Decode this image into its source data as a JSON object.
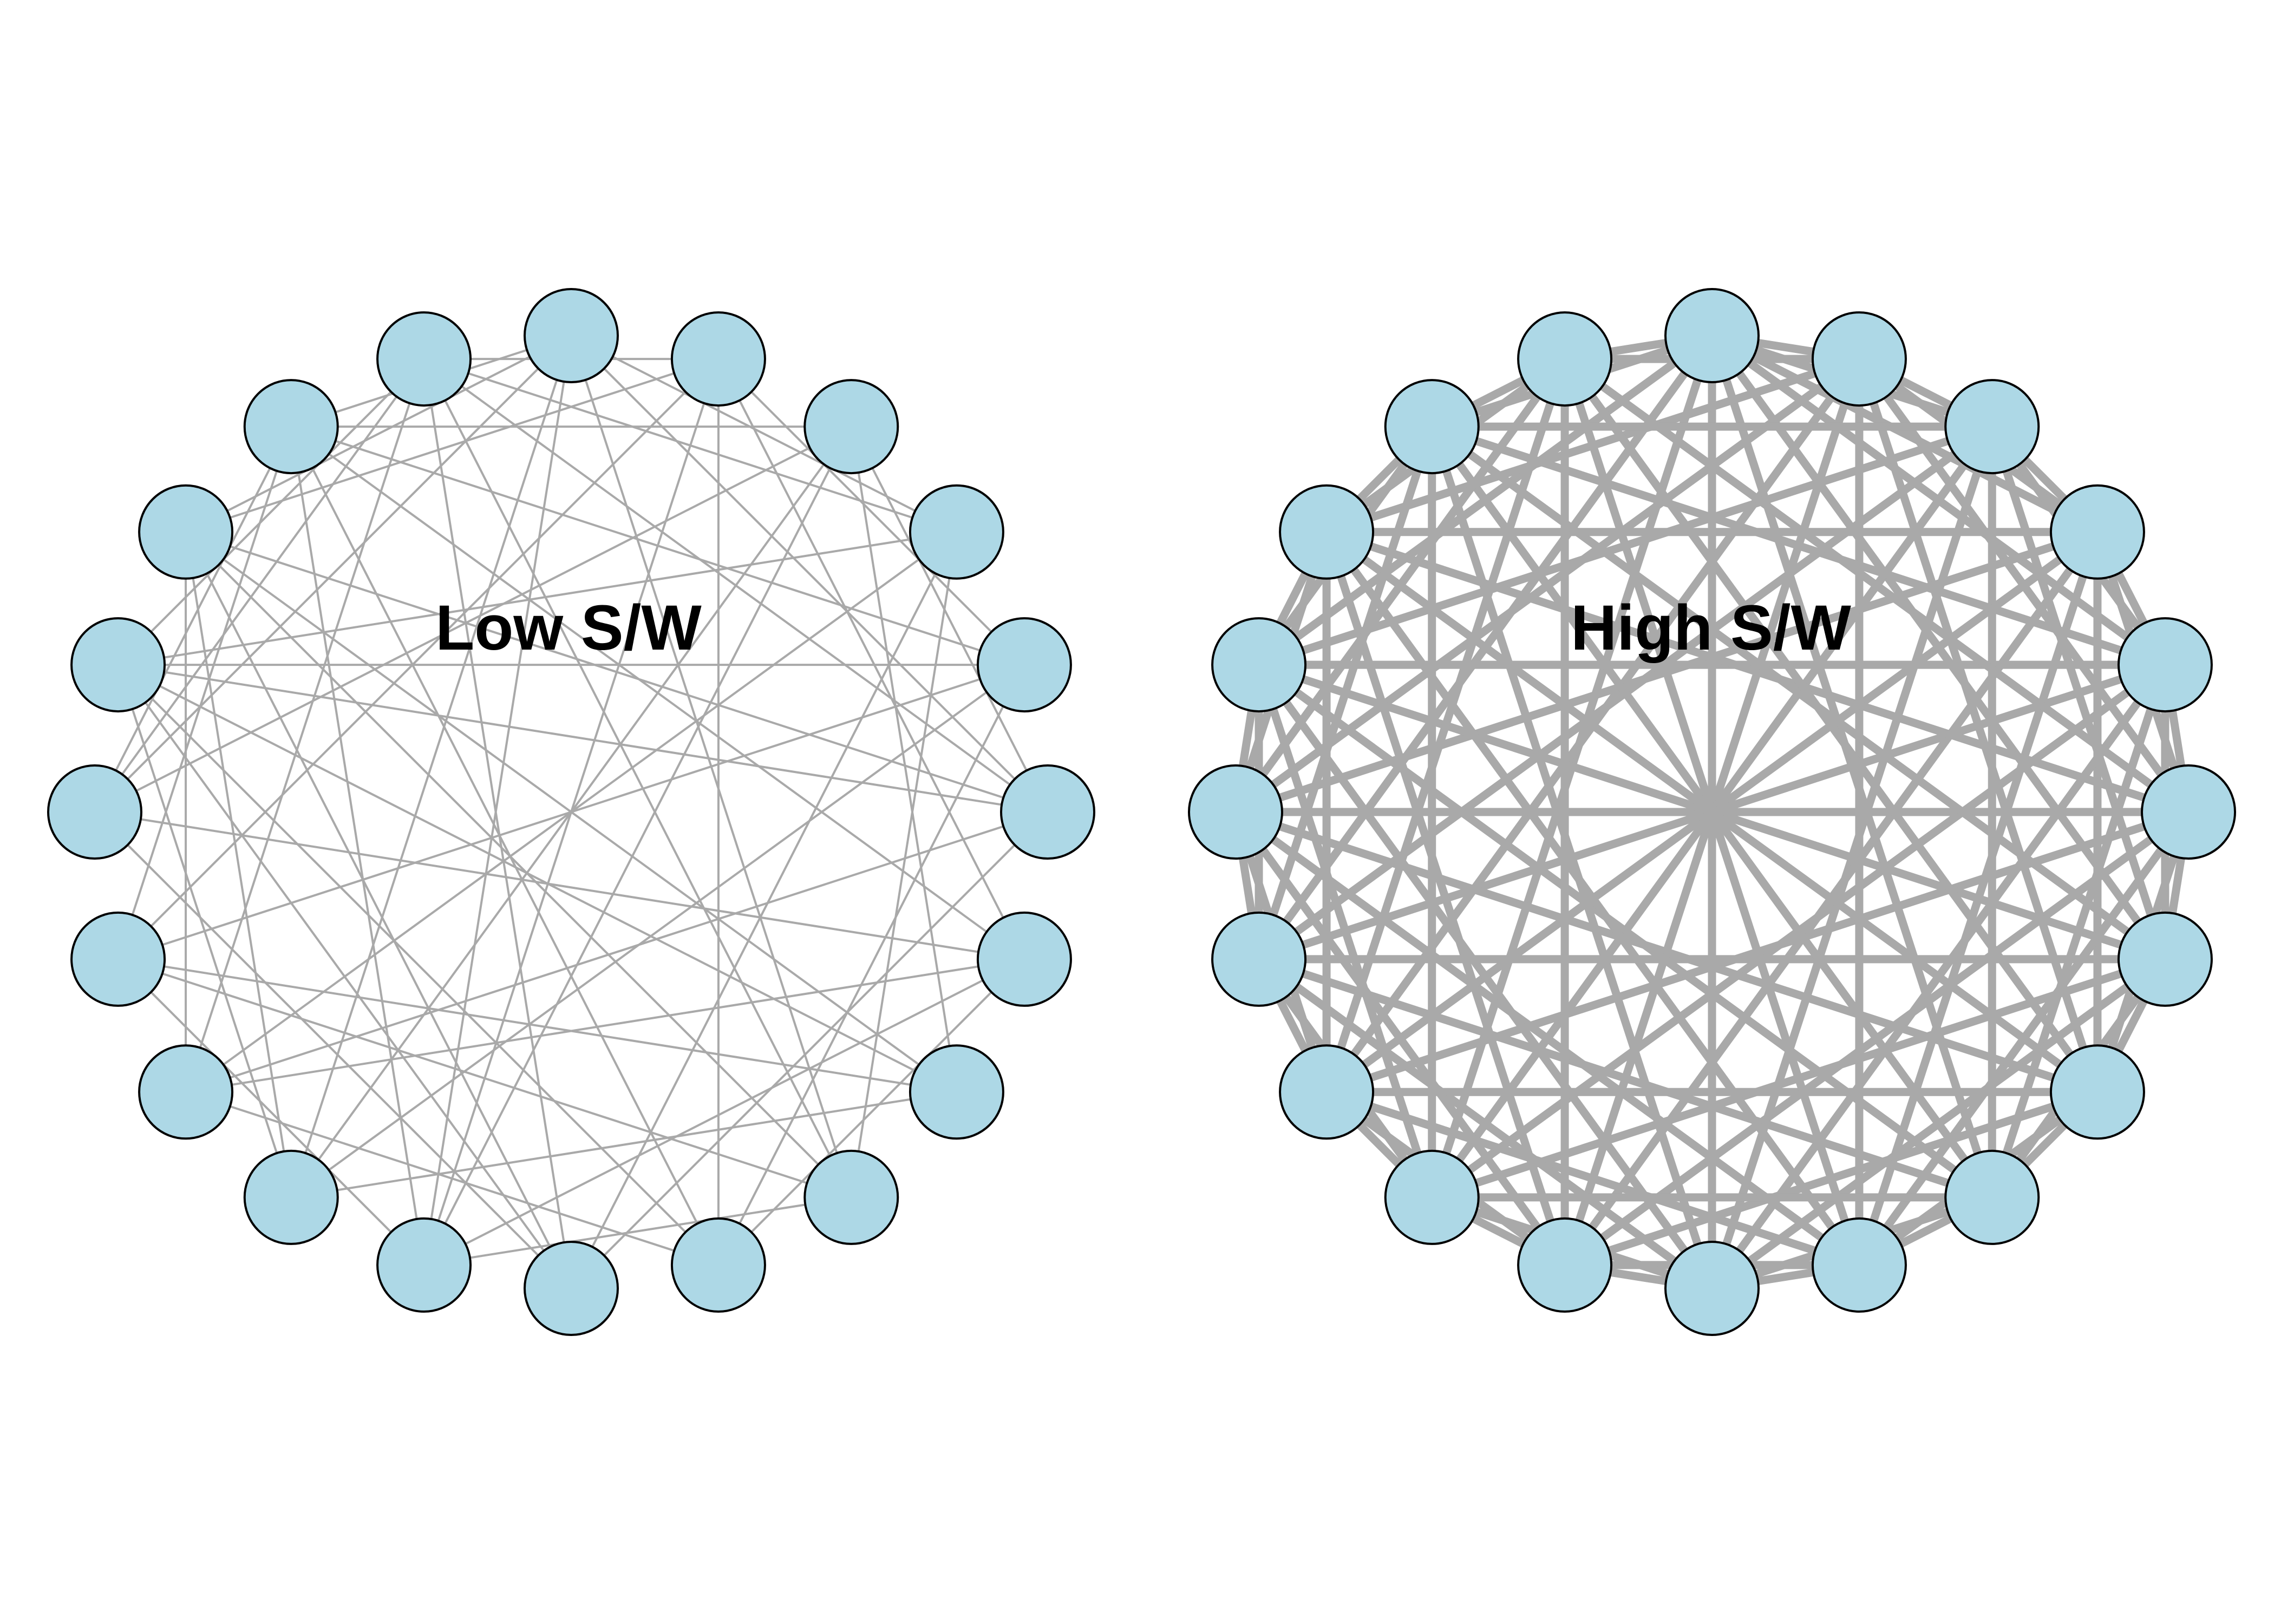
{
  "colors": {
    "node_fill": "#add8e6",
    "node_stroke": "#000000",
    "edge": "#a9a9a9",
    "background": "#ffffff"
  },
  "panels": [
    {
      "label": "Low S/W",
      "edge_weight": "low",
      "node_count": 20
    },
    {
      "label": "High S/W",
      "edge_weight": "high",
      "node_count": 20
    }
  ],
  "edges_low": [
    [
      0,
      5
    ],
    [
      0,
      8
    ],
    [
      0,
      12
    ],
    [
      0,
      15
    ],
    [
      0,
      17
    ],
    [
      0,
      3
    ],
    [
      0,
      18
    ],
    [
      0,
      11
    ],
    [
      1,
      6
    ],
    [
      1,
      9
    ],
    [
      1,
      14
    ],
    [
      1,
      17
    ],
    [
      1,
      19
    ],
    [
      1,
      4
    ],
    [
      1,
      11
    ],
    [
      2,
      7
    ],
    [
      2,
      11
    ],
    [
      2,
      15
    ],
    [
      2,
      18
    ],
    [
      2,
      5
    ],
    [
      2,
      12
    ],
    [
      3,
      8
    ],
    [
      3,
      13
    ],
    [
      3,
      16
    ],
    [
      3,
      19
    ],
    [
      3,
      10
    ],
    [
      4,
      9
    ],
    [
      4,
      12
    ],
    [
      4,
      16
    ],
    [
      4,
      18
    ],
    [
      4,
      14
    ],
    [
      5,
      10
    ],
    [
      5,
      13
    ],
    [
      5,
      16
    ],
    [
      5,
      19
    ],
    [
      5,
      17
    ],
    [
      6,
      11
    ],
    [
      6,
      15
    ],
    [
      6,
      18
    ],
    [
      6,
      13
    ],
    [
      6,
      9
    ],
    [
      7,
      12
    ],
    [
      7,
      14
    ],
    [
      7,
      16
    ],
    [
      7,
      17
    ],
    [
      8,
      14
    ],
    [
      8,
      17
    ],
    [
      8,
      11
    ],
    [
      8,
      19
    ],
    [
      9,
      13
    ],
    [
      9,
      16
    ],
    [
      9,
      18
    ],
    [
      10,
      15
    ],
    [
      10,
      17
    ],
    [
      10,
      19
    ],
    [
      10,
      16
    ],
    [
      11,
      14
    ],
    [
      11,
      18
    ],
    [
      12,
      16
    ],
    [
      12,
      17
    ],
    [
      13,
      17
    ],
    [
      13,
      19
    ],
    [
      14,
      18
    ],
    [
      15,
      19
    ],
    [
      15,
      18
    ],
    [
      16,
      19
    ]
  ],
  "edges_high": [
    [
      0,
      1
    ],
    [
      0,
      2
    ],
    [
      0,
      4
    ],
    [
      0,
      6
    ],
    [
      0,
      8
    ],
    [
      0,
      10
    ],
    [
      0,
      12
    ],
    [
      0,
      14
    ],
    [
      0,
      16
    ],
    [
      0,
      18
    ],
    [
      0,
      19
    ],
    [
      0,
      3
    ],
    [
      1,
      2
    ],
    [
      1,
      3
    ],
    [
      1,
      5
    ],
    [
      1,
      7
    ],
    [
      1,
      9
    ],
    [
      1,
      11
    ],
    [
      1,
      13
    ],
    [
      1,
      15
    ],
    [
      1,
      17
    ],
    [
      1,
      19
    ],
    [
      2,
      3
    ],
    [
      2,
      4
    ],
    [
      2,
      6
    ],
    [
      2,
      8
    ],
    [
      2,
      10
    ],
    [
      2,
      12
    ],
    [
      2,
      14
    ],
    [
      2,
      16
    ],
    [
      2,
      18
    ],
    [
      3,
      4
    ],
    [
      3,
      5
    ],
    [
      3,
      7
    ],
    [
      3,
      9
    ],
    [
      3,
      11
    ],
    [
      3,
      13
    ],
    [
      3,
      15
    ],
    [
      3,
      17
    ],
    [
      4,
      5
    ],
    [
      4,
      6
    ],
    [
      4,
      8
    ],
    [
      4,
      10
    ],
    [
      4,
      12
    ],
    [
      4,
      14
    ],
    [
      4,
      16
    ],
    [
      4,
      18
    ],
    [
      5,
      6
    ],
    [
      5,
      7
    ],
    [
      5,
      9
    ],
    [
      5,
      11
    ],
    [
      5,
      13
    ],
    [
      5,
      15
    ],
    [
      5,
      17
    ],
    [
      5,
      19
    ],
    [
      6,
      7
    ],
    [
      6,
      8
    ],
    [
      6,
      10
    ],
    [
      6,
      12
    ],
    [
      6,
      14
    ],
    [
      6,
      16
    ],
    [
      6,
      18
    ],
    [
      7,
      8
    ],
    [
      7,
      9
    ],
    [
      7,
      11
    ],
    [
      7,
      13
    ],
    [
      7,
      15
    ],
    [
      7,
      17
    ],
    [
      7,
      19
    ],
    [
      8,
      9
    ],
    [
      8,
      10
    ],
    [
      8,
      12
    ],
    [
      8,
      14
    ],
    [
      8,
      16
    ],
    [
      8,
      18
    ],
    [
      9,
      10
    ],
    [
      9,
      11
    ],
    [
      9,
      13
    ],
    [
      9,
      15
    ],
    [
      9,
      17
    ],
    [
      9,
      19
    ],
    [
      10,
      11
    ],
    [
      10,
      12
    ],
    [
      10,
      14
    ],
    [
      10,
      16
    ],
    [
      10,
      18
    ],
    [
      11,
      12
    ],
    [
      11,
      13
    ],
    [
      11,
      15
    ],
    [
      11,
      17
    ],
    [
      11,
      19
    ],
    [
      12,
      13
    ],
    [
      12,
      14
    ],
    [
      12,
      16
    ],
    [
      12,
      18
    ],
    [
      13,
      14
    ],
    [
      13,
      15
    ],
    [
      13,
      17
    ],
    [
      13,
      19
    ],
    [
      14,
      15
    ],
    [
      14,
      16
    ],
    [
      14,
      18
    ],
    [
      15,
      16
    ],
    [
      15,
      17
    ],
    [
      15,
      19
    ],
    [
      16,
      17
    ],
    [
      16,
      18
    ],
    [
      17,
      18
    ],
    [
      17,
      19
    ],
    [
      18,
      19
    ]
  ]
}
